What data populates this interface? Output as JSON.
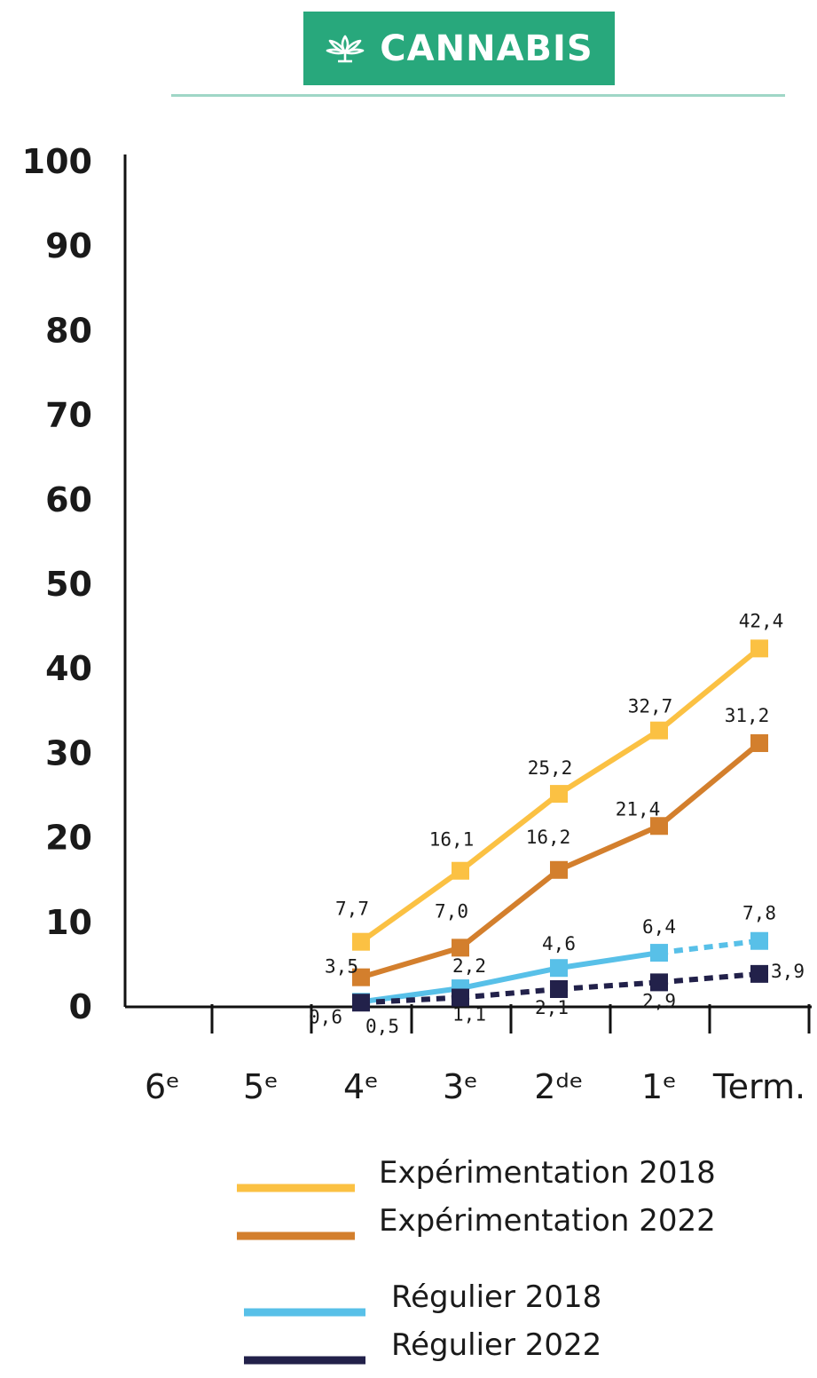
{
  "header": {
    "title": "CANNABIS",
    "icon": "cannabis-leaf-icon",
    "badge_color": "#28a87c",
    "rule_color": "#9fd6c6"
  },
  "chart_data": {
    "type": "line",
    "categories": [
      "6ᵉ",
      "5ᵉ",
      "4ᵉ",
      "3ᵉ",
      "2ᵈᵉ",
      "1ᵉ",
      "Term."
    ],
    "ylim": [
      0,
      100
    ],
    "yticks": [
      0,
      10,
      20,
      30,
      40,
      50,
      60,
      70,
      80,
      90,
      100
    ],
    "grid": false,
    "legend_position": "bottom",
    "series": [
      {
        "name": "Expérimentation 2018",
        "color": "#fbc143",
        "dashed_from": null,
        "values": [
          null,
          null,
          7.7,
          16.1,
          25.2,
          32.7,
          42.4
        ],
        "labels": [
          "",
          "",
          "7,7",
          "16,1",
          "25,2",
          "32,7",
          "42,4"
        ]
      },
      {
        "name": "Expérimentation 2022",
        "color": "#d37f2d",
        "dashed_from": null,
        "values": [
          null,
          null,
          3.5,
          7.0,
          16.2,
          21.4,
          31.2
        ],
        "labels": [
          "",
          "",
          "3,5",
          "7,0",
          "16,2",
          "21,4",
          "31,2"
        ]
      },
      {
        "name": "Régulier 2018",
        "color": "#58c0e8",
        "dashed_from": 5,
        "values": [
          null,
          null,
          0.6,
          2.2,
          4.6,
          6.4,
          7.8
        ],
        "labels": [
          "",
          "",
          "0,6",
          "2,2",
          "4,6",
          "6,4",
          "7,8"
        ]
      },
      {
        "name": "Régulier 2022",
        "color": "#22214a",
        "dashed_from": 2,
        "values": [
          null,
          null,
          0.5,
          1.1,
          2.1,
          2.9,
          3.9
        ],
        "labels": [
          "",
          "",
          "0,5",
          "1,1",
          "2,1",
          "2,9",
          "3,9"
        ]
      }
    ]
  }
}
